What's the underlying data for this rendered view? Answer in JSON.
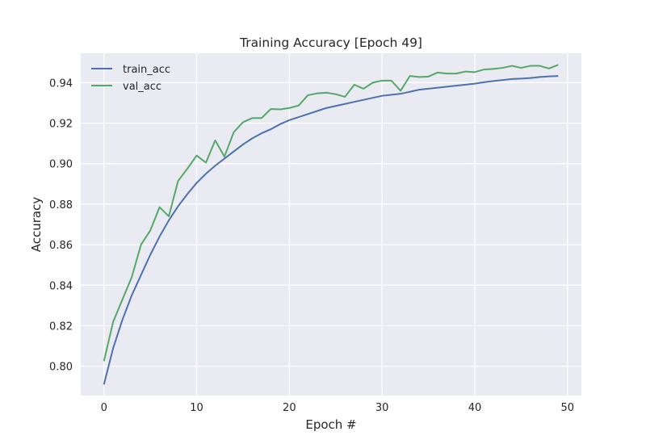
{
  "chart_data": {
    "type": "line",
    "title": "Training Accuracy [Epoch 49]",
    "xlabel": "Epoch #",
    "ylabel": "Accuracy",
    "xlim": [
      -2.5,
      51.5
    ],
    "ylim": [
      0.7855,
      0.9545
    ],
    "xticks": [
      0,
      10,
      20,
      30,
      40,
      50
    ],
    "yticks": [
      0.8,
      0.82,
      0.84,
      0.86,
      0.88,
      0.9,
      0.92,
      0.94
    ],
    "xtick_labels": [
      "0",
      "10",
      "20",
      "30",
      "40",
      "50"
    ],
    "ytick_labels": [
      "0.80",
      "0.82",
      "0.84",
      "0.86",
      "0.88",
      "0.90",
      "0.92",
      "0.94"
    ],
    "grid": true,
    "legend_position": "top-left",
    "x": [
      0,
      1,
      2,
      3,
      4,
      5,
      6,
      7,
      8,
      9,
      10,
      11,
      12,
      13,
      14,
      15,
      16,
      17,
      18,
      19,
      20,
      21,
      22,
      23,
      24,
      25,
      26,
      27,
      28,
      29,
      30,
      31,
      32,
      33,
      34,
      35,
      36,
      37,
      38,
      39,
      40,
      41,
      42,
      43,
      44,
      45,
      46,
      47,
      48,
      49
    ],
    "series": [
      {
        "name": "train_acc",
        "color": "#4c72b0",
        "values": [
          0.791,
          0.809,
          0.823,
          0.835,
          0.845,
          0.855,
          0.864,
          0.872,
          0.879,
          0.885,
          0.8905,
          0.895,
          0.899,
          0.9025,
          0.906,
          0.9095,
          0.9125,
          0.915,
          0.917,
          0.9195,
          0.9215,
          0.923,
          0.9245,
          0.926,
          0.9275,
          0.9285,
          0.9295,
          0.9305,
          0.9315,
          0.9325,
          0.9335,
          0.934,
          0.9345,
          0.9355,
          0.9365,
          0.937,
          0.9375,
          0.938,
          0.9385,
          0.939,
          0.9395,
          0.9402,
          0.9408,
          0.9413,
          0.9418,
          0.942,
          0.9423,
          0.9428,
          0.9431,
          0.9433
        ]
      },
      {
        "name": "val_acc",
        "color": "#55a868",
        "values": [
          0.8025,
          0.822,
          0.833,
          0.844,
          0.86,
          0.867,
          0.8785,
          0.874,
          0.8915,
          0.8975,
          0.904,
          0.9005,
          0.9115,
          0.9035,
          0.9155,
          0.9205,
          0.9225,
          0.9225,
          0.927,
          0.9268,
          0.9275,
          0.9287,
          0.9338,
          0.9347,
          0.935,
          0.9343,
          0.933,
          0.939,
          0.937,
          0.94,
          0.941,
          0.941,
          0.936,
          0.9433,
          0.9428,
          0.943,
          0.945,
          0.9445,
          0.9445,
          0.9455,
          0.9452,
          0.9465,
          0.9468,
          0.9473,
          0.9483,
          0.9473,
          0.9483,
          0.9483,
          0.947,
          0.9488
        ]
      }
    ]
  }
}
